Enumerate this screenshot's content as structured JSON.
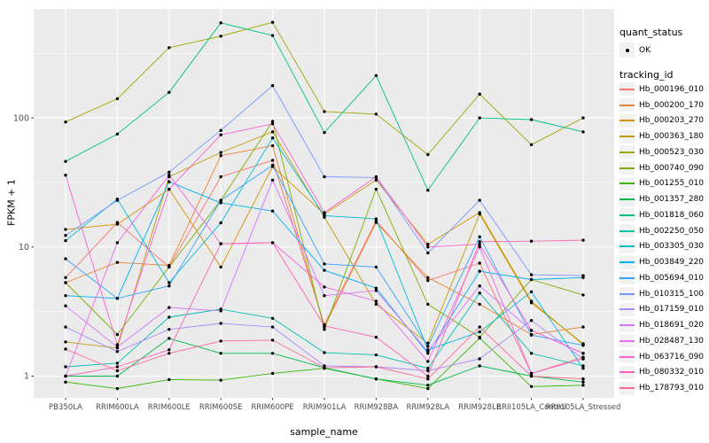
{
  "figure": {
    "background": "#FFFFFF",
    "panel_background": "#EBEBEB",
    "gridline_color": "#FFFFFF",
    "tick_text_color": "#4D4D4D",
    "tick_mark_color": "#333333",
    "point_color": "#000000",
    "legend_key_background": "#F2F2F2"
  },
  "legend": {
    "quant_status_title": "quant_status",
    "quant_status_value": "OK",
    "tracking_id_title": "tracking_id"
  },
  "chart_data": {
    "type": "line",
    "title": "",
    "xlabel": "sample_name",
    "ylabel": "FPKM + 1",
    "y_scale": "log10",
    "y_ticks": [
      "1",
      "10",
      "100"
    ],
    "y_tick_values": [
      1,
      10,
      100
    ],
    "y_minor_tick_values": [
      3.162,
      31.62,
      316.2
    ],
    "ylim": [
      0.72,
      700
    ],
    "grid": "on",
    "legend_position": "right",
    "categories": [
      "PB350LA",
      "RRIM600LA",
      "RRIM600LE",
      "RRIM600SE",
      "RRIM600PE",
      "RRIM901LA",
      "RRIM928BA",
      "RRIM928LA",
      "RRIM928LE",
      "RRII105LA_Control",
      "RRII105LA_Stressed"
    ],
    "series": [
      {
        "name": "Hb_000196_010",
        "color": "#F8766D",
        "values": [
          5.8,
          15.5,
          7,
          35,
          47,
          2.5,
          16,
          5.5,
          7.5,
          1.05,
          1.4
        ]
      },
      {
        "name": "Hb_000200_170",
        "color": "#EA8331",
        "values": [
          5.3,
          7.6,
          7.2,
          51,
          61,
          2.4,
          15.5,
          5.8,
          3.6,
          2.1,
          2.4
        ]
      },
      {
        "name": "Hb_000203_270",
        "color": "#D89000",
        "values": [
          13.7,
          15,
          28,
          7,
          42,
          18,
          33,
          10.5,
          18.5,
          3.8,
          1.75
        ]
      },
      {
        "name": "Hb_000363_180",
        "color": "#C09B00",
        "values": [
          1.84,
          1.65,
          35,
          54,
          78,
          17,
          3.6,
          1.8,
          18,
          3.7,
          1.78
        ]
      },
      {
        "name": "Hb_000523_030",
        "color": "#A3A500",
        "values": [
          93,
          141,
          350,
          430,
          550,
          112,
          107,
          52,
          153,
          62,
          100
        ]
      },
      {
        "name": "Hb_000740_090",
        "color": "#7CAE00",
        "values": [
          5.3,
          2.1,
          7,
          23,
          94,
          2.3,
          28,
          3.6,
          2,
          5.6,
          4.25
        ]
      },
      {
        "name": "Hb_001255_010",
        "color": "#39B600",
        "values": [
          0.9,
          0.8,
          0.94,
          0.93,
          1.05,
          1.15,
          0.95,
          0.8,
          1.97,
          0.83,
          0.85
        ]
      },
      {
        "name": "Hb_001357_280",
        "color": "#00BB4E",
        "values": [
          1,
          1,
          1.96,
          1.5,
          1.5,
          1.16,
          0.95,
          0.85,
          1.2,
          1,
          0.9
        ]
      },
      {
        "name": "Hb_001818_060",
        "color": "#00C087",
        "values": [
          46,
          75,
          158,
          545,
          435,
          77,
          213,
          27.5,
          100,
          97,
          78
        ]
      },
      {
        "name": "Hb_002250_050",
        "color": "#00C0AF",
        "values": [
          1.18,
          1.26,
          2.86,
          3.3,
          2.8,
          1.52,
          1.46,
          1.15,
          4.4,
          1.5,
          1.2
        ]
      },
      {
        "name": "Hb_003305_030",
        "color": "#00BCD8",
        "values": [
          11.2,
          23.5,
          5.3,
          15.4,
          70,
          17.5,
          16.5,
          1.6,
          2.2,
          4.5,
          1.15
        ]
      },
      {
        "name": "Hb_003849_220",
        "color": "#00B0F6",
        "values": [
          4.2,
          4,
          32,
          22,
          19,
          6.6,
          4.8,
          1.5,
          6.5,
          5.6,
          5.8
        ]
      },
      {
        "name": "Hb_005694_010",
        "color": "#35A2FF",
        "values": [
          8.1,
          4,
          5,
          23,
          43,
          7.4,
          7,
          1.7,
          12,
          2.08,
          1.73
        ]
      },
      {
        "name": "Hb_010315_100",
        "color": "#7997FF",
        "values": [
          12.3,
          23,
          38,
          80,
          178,
          35,
          34.5,
          9,
          23,
          6.1,
          6
        ]
      },
      {
        "name": "Hb_017159_010",
        "color": "#AC88FF",
        "values": [
          2.4,
          1.55,
          2.3,
          2.56,
          2.4,
          1.2,
          1.18,
          1.1,
          1.36,
          2.7,
          1.36
        ]
      },
      {
        "name": "Hb_018691_020",
        "color": "#D475FF",
        "values": [
          3.5,
          1.68,
          3.4,
          3.2,
          33,
          4.2,
          4.6,
          1.55,
          5,
          2.26,
          1.5
        ]
      },
      {
        "name": "Hb_028487_130",
        "color": "#EF67EB",
        "values": [
          1,
          10.8,
          36,
          10.6,
          10.8,
          4.9,
          3.8,
          1.3,
          10,
          1.05,
          1.36
        ]
      },
      {
        "name": "Hb_063716_090",
        "color": "#FD61D3",
        "values": [
          36,
          1.75,
          28,
          74,
          90,
          18.5,
          35,
          10,
          10.5,
          2.26,
          1.5
        ]
      },
      {
        "name": "Hb_080332_010",
        "color": "#FF62B6",
        "values": [
          1,
          1.18,
          1.6,
          10.6,
          10.8,
          2.45,
          2,
          1,
          11,
          11.1,
          11.3
        ]
      },
      {
        "name": "Hb_178793_010",
        "color": "#FF6A95",
        "values": [
          1.62,
          1.1,
          1.5,
          1.87,
          1.9,
          1.16,
          1.18,
          0.95,
          2.4,
          1,
          0.95
        ]
      }
    ]
  }
}
